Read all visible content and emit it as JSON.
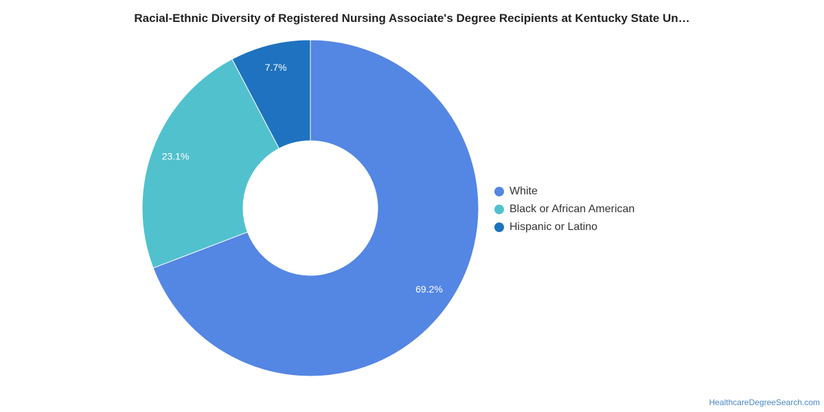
{
  "chart_data": {
    "type": "pie",
    "title": "Racial-Ethnic Diversity of Registered Nursing Associate's Degree Recipients at Kentucky State Un…",
    "categories": [
      "White",
      "Black or African American",
      "Hispanic or Latino"
    ],
    "values": [
      69.2,
      23.1,
      7.7
    ],
    "value_labels": [
      "69.2%",
      "23.1%",
      "7.7%"
    ],
    "colors": [
      "#5486e3",
      "#51c1ce",
      "#1f72bf"
    ],
    "donut": true,
    "legend_position": "right"
  },
  "footer": {
    "source": "HealthcareDegreeSearch.com"
  }
}
